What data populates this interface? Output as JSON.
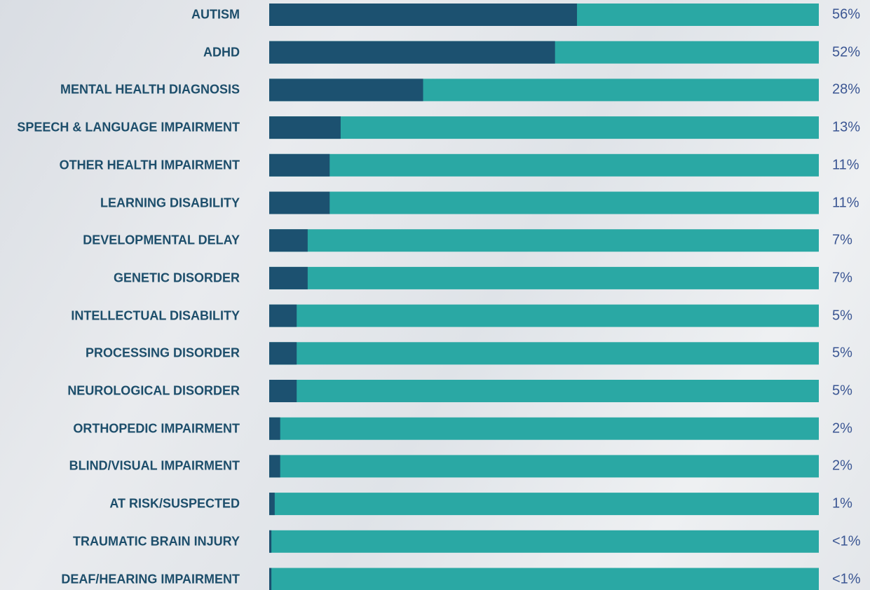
{
  "chart_data": {
    "type": "bar",
    "categories": [
      "AUTISM",
      "ADHD",
      "MENTAL HEALTH DIAGNOSIS",
      "SPEECH & LANGUAGE IMPAIRMENT",
      "OTHER HEALTH IMPAIRMENT",
      "LEARNING DISABILITY",
      "DEVELOPMENTAL DELAY",
      "GENETIC DISORDER",
      "INTELLECTUAL DISABILITY",
      "PROCESSING DISORDER",
      "NEUROLOGICAL DISORDER",
      "ORTHOPEDIC IMPAIRMENT",
      "BLIND/VISUAL IMPAIRMENT",
      "AT RISK/SUSPECTED",
      "TRAUMATIC BRAIN INJURY",
      "DEAF/HEARING IMPAIRMENT"
    ],
    "values": [
      56,
      52,
      28,
      13,
      11,
      11,
      7,
      7,
      5,
      5,
      5,
      2,
      2,
      1,
      0.4,
      0.4
    ],
    "value_labels": [
      "56%",
      "52%",
      "28%",
      "13%",
      "11%",
      "11%",
      "7%",
      "7%",
      "5%",
      "5%",
      "5%",
      "2%",
      "2%",
      "1%",
      "<1%",
      "<1%"
    ],
    "color": "#1c5170",
    "track_color": "#2aa8a4",
    "xlim": [
      0,
      100
    ]
  }
}
